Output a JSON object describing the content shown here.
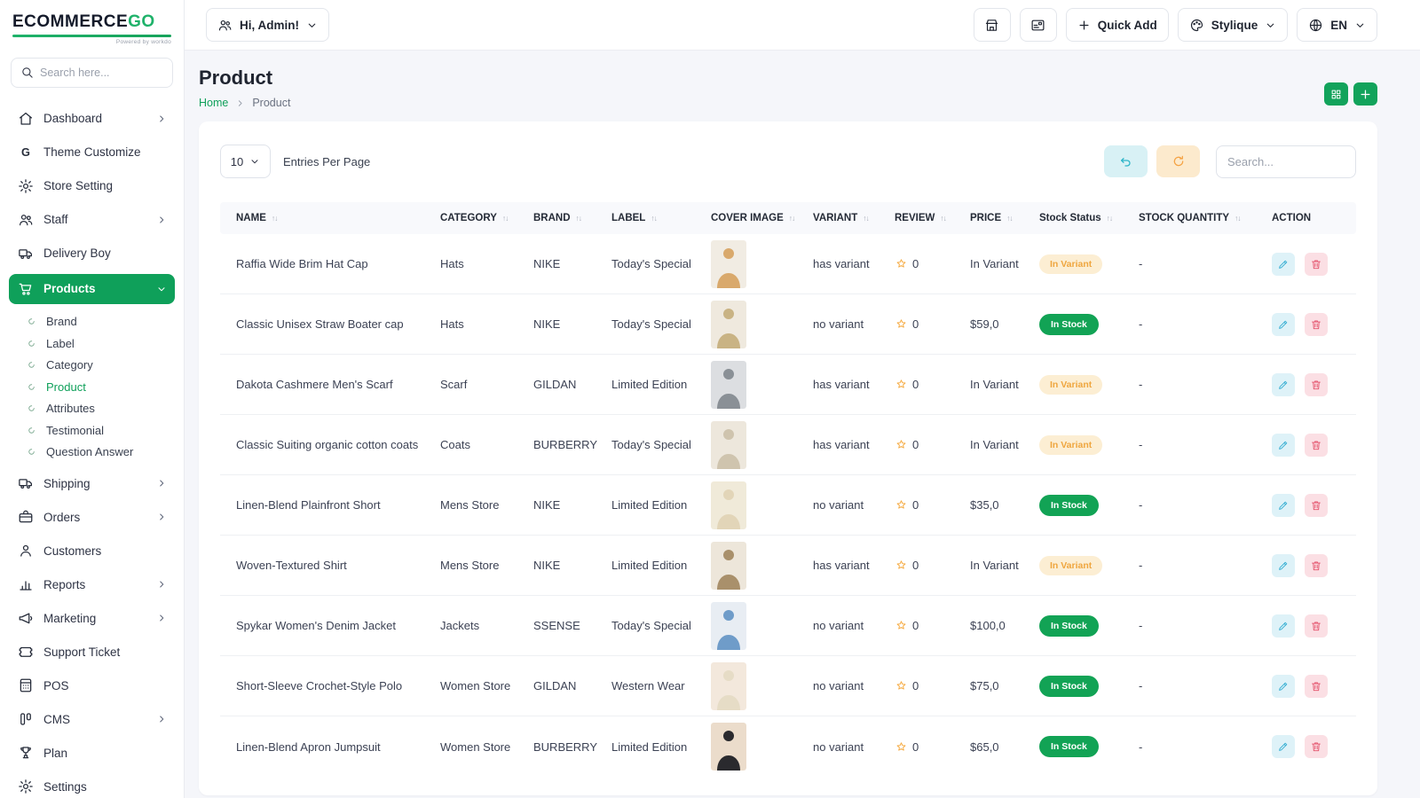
{
  "colors": {
    "accent": "#0FA05A",
    "badge_variant_bg": "#FCEED3",
    "badge_variant_text": "#EFA63F",
    "badge_stock_bg": "#12A355",
    "edit_bg": "#DEF2F8",
    "edit_icon": "#38AFD3",
    "delete_bg": "#FBDFE4",
    "delete_icon": "#E4506A",
    "undo_bg": "#D8F1F5",
    "refresh_bg": "#FCEACD"
  },
  "brand": {
    "logo_main": "ECOMMERCE",
    "logo_accent": "GO",
    "powered_by": "Powered by workdo"
  },
  "sidebar": {
    "search_placeholder": "Search here...",
    "items": [
      {
        "label": "Dashboard",
        "icon": "home",
        "chevron": "right"
      },
      {
        "label": "Theme Customize",
        "icon": "g-letter"
      },
      {
        "label": "Store Setting",
        "icon": "gear-badge"
      },
      {
        "label": "Staff",
        "icon": "users",
        "chevron": "right"
      },
      {
        "label": "Delivery Boy",
        "icon": "truck"
      },
      {
        "label": "Products",
        "icon": "cart",
        "chevron": "down",
        "active": true,
        "children": [
          {
            "label": "Brand"
          },
          {
            "label": "Label"
          },
          {
            "label": "Category"
          },
          {
            "label": "Product",
            "active": true
          },
          {
            "label": "Attributes"
          },
          {
            "label": "Testimonial"
          },
          {
            "label": "Question Answer"
          }
        ]
      },
      {
        "label": "Shipping",
        "icon": "truck",
        "chevron": "right"
      },
      {
        "label": "Orders",
        "icon": "briefcase",
        "chevron": "right"
      },
      {
        "label": "Customers",
        "icon": "user"
      },
      {
        "label": "Reports",
        "icon": "chart",
        "chevron": "right"
      },
      {
        "label": "Marketing",
        "icon": "megaphone",
        "chevron": "right"
      },
      {
        "label": "Support Ticket",
        "icon": "ticket"
      },
      {
        "label": "POS",
        "icon": "pos"
      },
      {
        "label": "CMS",
        "icon": "cms",
        "chevron": "right"
      },
      {
        "label": "Plan",
        "icon": "trophy"
      },
      {
        "label": "Settings",
        "icon": "gear"
      }
    ]
  },
  "header": {
    "greeting": "Hi, Admin!",
    "quick_add_label": "Quick Add",
    "theme_label": "Stylique",
    "language": "EN"
  },
  "page": {
    "title": "Product",
    "breadcrumb_home": "Home",
    "breadcrumb_current": "Product"
  },
  "toolbar": {
    "entries_value": "10",
    "entries_label": "Entries Per Page",
    "search_placeholder": "Search..."
  },
  "table": {
    "columns": [
      {
        "label": "NAME",
        "sortable": true
      },
      {
        "label": "CATEGORY",
        "sortable": true
      },
      {
        "label": "BRAND",
        "sortable": true
      },
      {
        "label": "LABEL",
        "sortable": true
      },
      {
        "label": "COVER IMAGE",
        "sortable": true
      },
      {
        "label": "VARIANT",
        "sortable": true
      },
      {
        "label": "REVIEW",
        "sortable": true
      },
      {
        "label": "PRICE",
        "sortable": true
      },
      {
        "label": "Stock Status",
        "sortable": true
      },
      {
        "label": "STOCK QUANTITY",
        "sortable": true
      },
      {
        "label": "ACTION",
        "sortable": false
      }
    ],
    "rows": [
      {
        "name": "Raffia Wide Brim Hat Cap",
        "category": "Hats",
        "brand": "NIKE",
        "label": "Today's Special",
        "variant": "has variant",
        "review": "0",
        "price": "In Variant",
        "stock_status": "In Variant",
        "stock_type": "variant",
        "stock_quantity": "-",
        "img_bg": "#F1ECE3",
        "img_fg": "#D9A96C"
      },
      {
        "name": "Classic Unisex Straw Boater cap",
        "category": "Hats",
        "brand": "NIKE",
        "label": "Today's Special",
        "variant": "no variant",
        "review": "0",
        "price": "$59,0",
        "stock_status": "In Stock",
        "stock_type": "stock",
        "stock_quantity": "-",
        "img_bg": "#EFE9DE",
        "img_fg": "#C9B384"
      },
      {
        "name": "Dakota Cashmere Men's Scarf",
        "category": "Scarf",
        "brand": "GILDAN",
        "label": "Limited Edition",
        "variant": "has variant",
        "review": "0",
        "price": "In Variant",
        "stock_status": "In Variant",
        "stock_type": "variant",
        "stock_quantity": "-",
        "img_bg": "#DCDEE1",
        "img_fg": "#8A9096"
      },
      {
        "name": "Classic Suiting organic cotton coats",
        "category": "Coats",
        "brand": "BURBERRY",
        "label": "Today's Special",
        "variant": "has variant",
        "review": "0",
        "price": "In Variant",
        "stock_status": "In Variant",
        "stock_type": "variant",
        "stock_quantity": "-",
        "img_bg": "#EDE7DC",
        "img_fg": "#CFC4AE"
      },
      {
        "name": "Linen-Blend Plainfront Short",
        "category": "Mens Store",
        "brand": "NIKE",
        "label": "Limited Edition",
        "variant": "no variant",
        "review": "0",
        "price": "$35,0",
        "stock_status": "In Stock",
        "stock_type": "stock",
        "stock_quantity": "-",
        "img_bg": "#F0EAD9",
        "img_fg": "#E2D5B8"
      },
      {
        "name": "Woven-Textured Shirt",
        "category": "Mens Store",
        "brand": "NIKE",
        "label": "Limited Edition",
        "variant": "has variant",
        "review": "0",
        "price": "In Variant",
        "stock_status": "In Variant",
        "stock_type": "variant",
        "stock_quantity": "-",
        "img_bg": "#EDE6DA",
        "img_fg": "#A9906B"
      },
      {
        "name": "Spykar Women's Denim Jacket",
        "category": "Jackets",
        "brand": "SSENSE",
        "label": "Today's Special",
        "variant": "no variant",
        "review": "0",
        "price": "$100,0",
        "stock_status": "In Stock",
        "stock_type": "stock",
        "stock_quantity": "-",
        "img_bg": "#E8EDF3",
        "img_fg": "#6F9CC9"
      },
      {
        "name": "Short-Sleeve Crochet-Style Polo",
        "category": "Women Store",
        "brand": "GILDAN",
        "label": "Western Wear",
        "variant": "no variant",
        "review": "0",
        "price": "$75,0",
        "stock_status": "In Stock",
        "stock_type": "stock",
        "stock_quantity": "-",
        "img_bg": "#F3E8DC",
        "img_fg": "#E6DCC6"
      },
      {
        "name": "Linen-Blend Apron Jumpsuit",
        "category": "Women Store",
        "brand": "BURBERRY",
        "label": "Limited Edition",
        "variant": "no variant",
        "review": "0",
        "price": "$65,0",
        "stock_status": "In Stock",
        "stock_type": "stock",
        "stock_quantity": "-",
        "img_bg": "#EBDCCB",
        "img_fg": "#2A2A2E"
      }
    ]
  }
}
